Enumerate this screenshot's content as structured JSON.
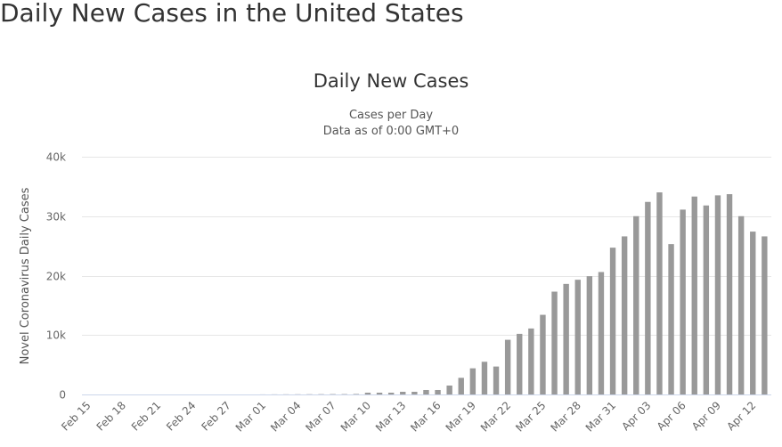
{
  "page_title": "Daily New Cases in the United States",
  "chart_data": {
    "type": "bar",
    "title": "Daily New Cases",
    "subtitle": [
      "Cases per Day",
      "Data as of 0:00 GMT+0"
    ],
    "xlabel": "",
    "ylabel": "Novel Coronavirus Daily Cases",
    "ylim": [
      0,
      40000
    ],
    "yticks": [
      0,
      10000,
      20000,
      30000,
      40000
    ],
    "ytick_labels": [
      "0",
      "10k",
      "20k",
      "30k",
      "40k"
    ],
    "grid": true,
    "bar_color": "#999999",
    "categories": [
      "Feb 15",
      "Feb 16",
      "Feb 17",
      "Feb 18",
      "Feb 19",
      "Feb 20",
      "Feb 21",
      "Feb 22",
      "Feb 23",
      "Feb 24",
      "Feb 25",
      "Feb 26",
      "Feb 27",
      "Feb 28",
      "Feb 29",
      "Mar 01",
      "Mar 02",
      "Mar 03",
      "Mar 04",
      "Mar 05",
      "Mar 06",
      "Mar 07",
      "Mar 08",
      "Mar 09",
      "Mar 10",
      "Mar 11",
      "Mar 12",
      "Mar 13",
      "Mar 14",
      "Mar 15",
      "Mar 16",
      "Mar 17",
      "Mar 18",
      "Mar 19",
      "Mar 20",
      "Mar 21",
      "Mar 22",
      "Mar 23",
      "Mar 24",
      "Mar 25",
      "Mar 26",
      "Mar 27",
      "Mar 28",
      "Mar 29",
      "Mar 30",
      "Mar 31",
      "Apr 01",
      "Apr 02",
      "Apr 03",
      "Apr 04",
      "Apr 05",
      "Apr 06",
      "Apr 07",
      "Apr 08",
      "Apr 09",
      "Apr 10",
      "Apr 11",
      "Apr 12",
      "Apr 13"
    ],
    "tick_labels": [
      "Feb 15",
      "Feb 18",
      "Feb 21",
      "Feb 24",
      "Feb 27",
      "Mar 01",
      "Mar 04",
      "Mar 07",
      "Mar 10",
      "Mar 13",
      "Mar 16",
      "Mar 19",
      "Mar 22",
      "Mar 25",
      "Mar 28",
      "Mar 31",
      "Apr 03",
      "Apr 06",
      "Apr 09",
      "Apr 12"
    ],
    "values": [
      0,
      0,
      0,
      0,
      0,
      0,
      0,
      0,
      0,
      0,
      0,
      0,
      0,
      0,
      0,
      10,
      20,
      25,
      30,
      40,
      50,
      60,
      60,
      80,
      300,
      300,
      300,
      450,
      450,
      750,
      750,
      1500,
      2800,
      4400,
      5500,
      4700,
      9200,
      10200,
      11100,
      13400,
      17300,
      18600,
      19300,
      19900,
      20600,
      24700,
      26600,
      30000,
      32400,
      34000,
      25300,
      31100,
      33300,
      31800,
      33500,
      33700,
      30000,
      27400,
      26600
    ]
  }
}
